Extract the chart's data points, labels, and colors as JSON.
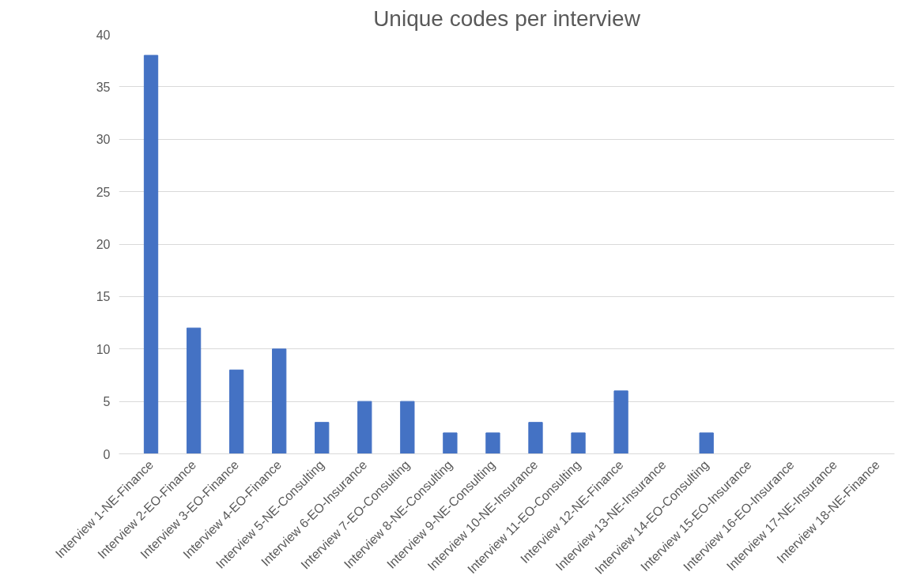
{
  "chart_data": {
    "type": "bar",
    "title": "Unique codes per interview",
    "categories": [
      "Interview 1-NE-Finance",
      "Interview 2-EO-Finance",
      "Interview 3-EO-Finance",
      "Interview 4-EO-Finance",
      "Interview 5-NE-Consulting",
      "Interview 6-EO-Insurance",
      "Interview 7-EO-Consulting",
      "Interview 8-NE-Consulting",
      "Interview 9-NE-Consulting",
      "Interview 10-NE-Insurance",
      "Interview 11-EO-Consulting",
      "Interview 12-NE-Finance",
      "Interview 13-NE-Insurance",
      "Interview 14-EO-Consulting",
      "Interview 15-EO-Insurance",
      "Interview 16-EO-Insurance",
      "Interview 17-NE-Insurance",
      "Interview 18-NE-Finance"
    ],
    "values": [
      38,
      12,
      8,
      10,
      3,
      5,
      5,
      2,
      2,
      3,
      2,
      6,
      0,
      2,
      0,
      0,
      0,
      0
    ],
    "color": "#4472c4",
    "ylim": [
      0,
      40
    ],
    "yticks": [
      0,
      5,
      10,
      15,
      20,
      25,
      30,
      35,
      40
    ],
    "grid": "y"
  }
}
